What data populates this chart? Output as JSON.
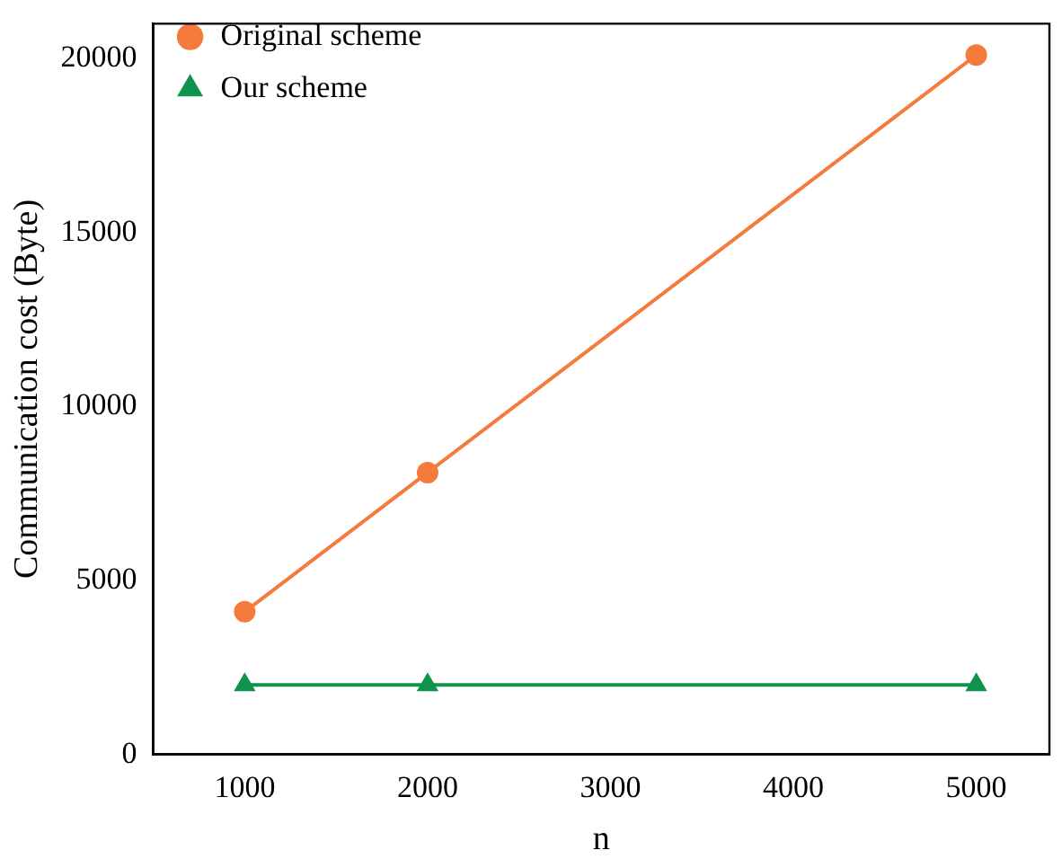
{
  "chart_data": {
    "type": "line",
    "xlabel": "n",
    "ylabel": "Communication cost (Byte)",
    "x": [
      1000,
      2000,
      5000
    ],
    "series": [
      {
        "name": "Original scheme",
        "color": "#f47b3b",
        "marker": "circle",
        "values": [
          4100,
          8100,
          20100
        ]
      },
      {
        "name": "Our scheme",
        "color": "#10934a",
        "marker": "triangle",
        "values": [
          2000,
          2000,
          2000
        ]
      }
    ],
    "xlim": [
      500,
      5400
    ],
    "xticks": [
      1000,
      2000,
      3000,
      4000,
      5000
    ],
    "ylim": [
      0,
      21000
    ],
    "yticks": [
      0,
      5000,
      10000,
      15000,
      20000
    ],
    "grid": false,
    "legend": "top left",
    "line_style": "solid"
  }
}
